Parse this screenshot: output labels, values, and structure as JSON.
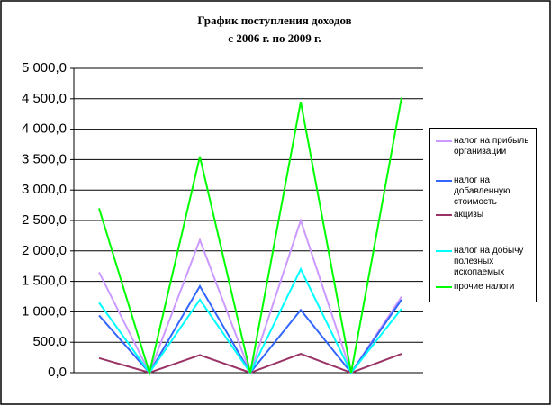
{
  "chart_data": {
    "type": "line",
    "title": "График поступления доходов",
    "subtitle": "с 2006 г. по 2009 г.",
    "categories": [
      null,
      null,
      null,
      null,
      null,
      null,
      null
    ],
    "series": [
      {
        "name": "налог на прибыль организации",
        "color": "#cc99ff",
        "values": [
          1650,
          0,
          2180,
          0,
          2500,
          0,
          1250
        ]
      },
      {
        "name": "налог на добавленную стоимость",
        "color": "#3366ff",
        "values": [
          940,
          0,
          1420,
          0,
          1030,
          0,
          1200
        ]
      },
      {
        "name": "акцизы",
        "color": "#993366",
        "values": [
          240,
          0,
          290,
          0,
          310,
          0,
          310
        ]
      },
      {
        "name": "налог на добычу полезных ископаемых",
        "color": "#00ffff",
        "values": [
          1150,
          0,
          1200,
          0,
          1700,
          0,
          1050
        ]
      },
      {
        "name": "прочие налоги",
        "color": "#00ff00",
        "values": [
          2700,
          0,
          3550,
          0,
          4450,
          0,
          4520
        ]
      }
    ],
    "ylim": [
      0,
      5000
    ],
    "yticks": [
      {
        "value": 0,
        "label": "0,0"
      },
      {
        "value": 500,
        "label": "500,0"
      },
      {
        "value": 1000,
        "label": "1 000,0"
      },
      {
        "value": 1500,
        "label": "1 500,0"
      },
      {
        "value": 2000,
        "label": "2 000,0"
      },
      {
        "value": 2500,
        "label": "2 500,0"
      },
      {
        "value": 3000,
        "label": "3 000,0"
      },
      {
        "value": 3500,
        "label": "3 500,0"
      },
      {
        "value": 4000,
        "label": "4 000,0"
      },
      {
        "value": 4500,
        "label": "4 500,0"
      },
      {
        "value": 5000,
        "label": "5 000,0"
      }
    ],
    "grid": true
  }
}
